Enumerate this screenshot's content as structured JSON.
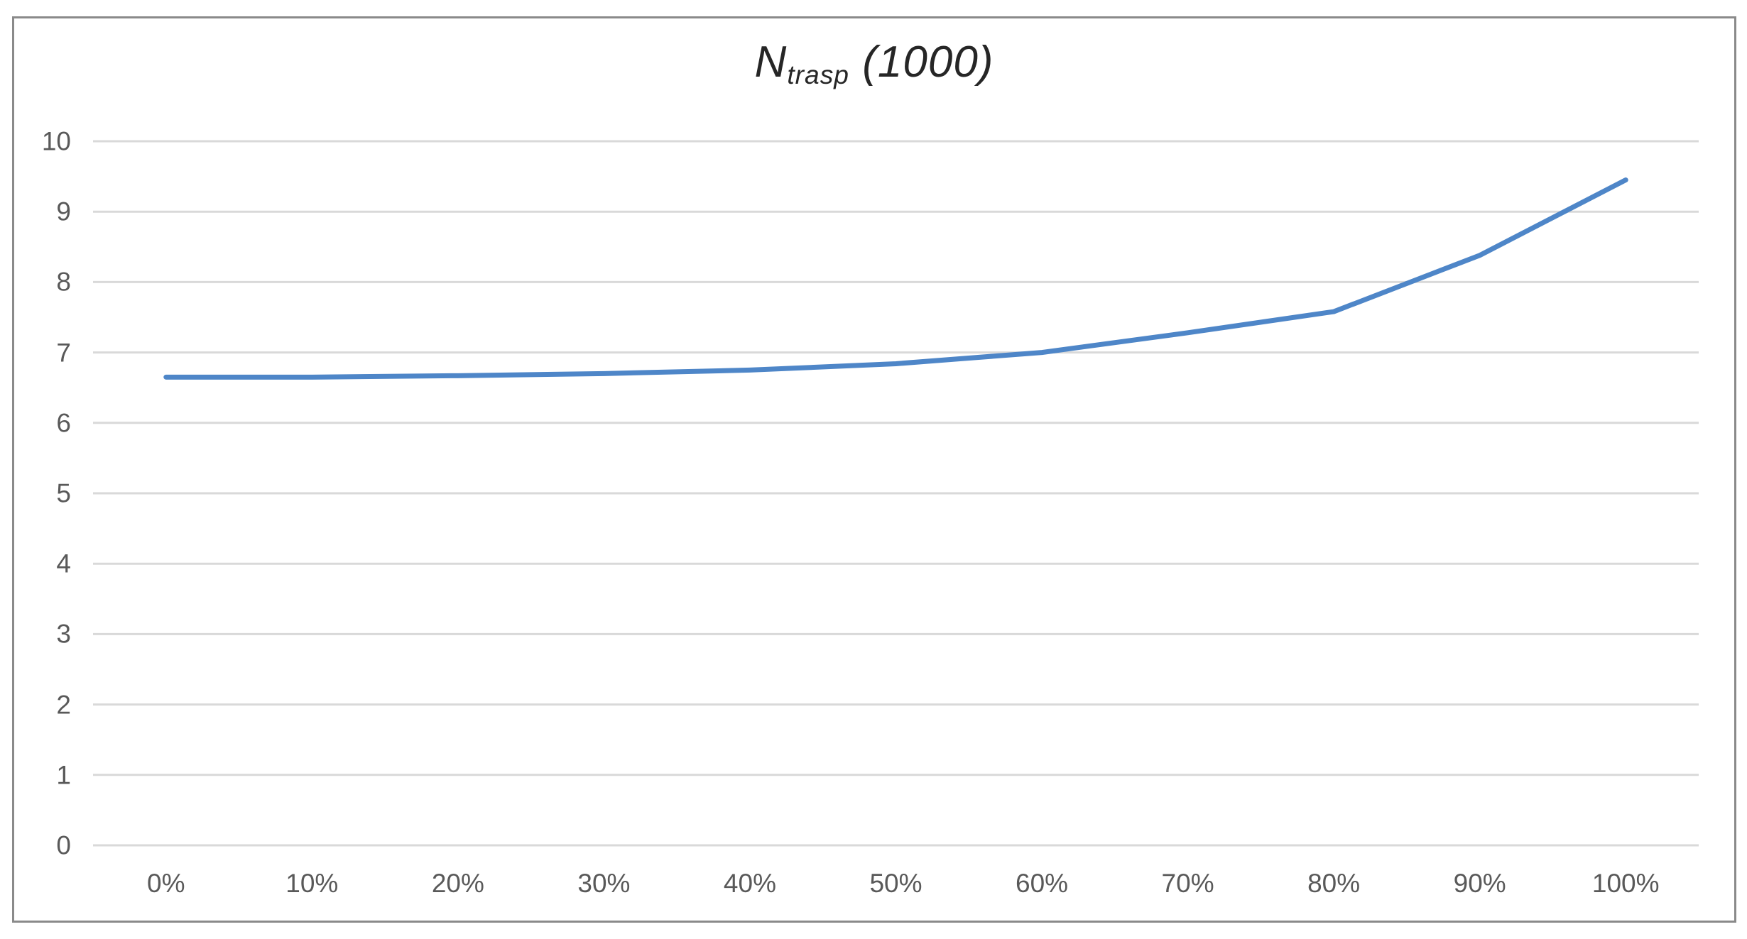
{
  "chart_data": {
    "type": "line",
    "title": "N_trasp (1000)",
    "title_parts": {
      "main": "N",
      "sub": "trasp",
      "suffix": " (1000)"
    },
    "categories": [
      "0%",
      "10%",
      "20%",
      "30%",
      "40%",
      "50%",
      "60%",
      "70%",
      "80%",
      "90%",
      "100%"
    ],
    "series": [
      {
        "values": [
          6.65,
          6.65,
          6.67,
          6.7,
          6.75,
          6.84,
          7.0,
          7.28,
          7.58,
          8.38,
          9.45
        ]
      }
    ],
    "yticks": [
      0,
      1,
      2,
      3,
      4,
      5,
      6,
      7,
      8,
      9,
      10
    ],
    "ylim": [
      0,
      10
    ],
    "xlabel": "",
    "ylabel": "",
    "grid": true,
    "legend": "none",
    "colors": {
      "line": "#4e86c8",
      "gridline": "#d9d9d9",
      "axis_line": "#d9d9d9",
      "tick_label": "#595959",
      "title": "#262626",
      "frame_border": "#8a8a8a",
      "background": "#ffffff"
    }
  }
}
